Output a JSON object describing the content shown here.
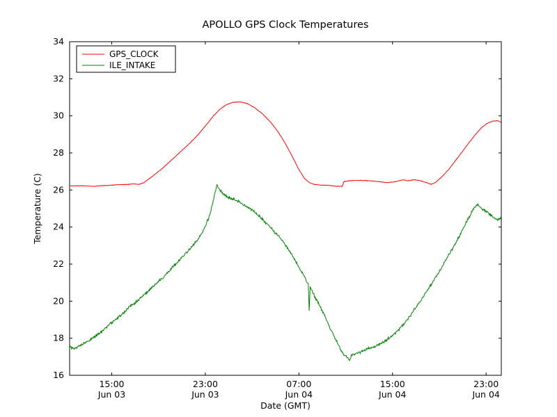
{
  "figure": {
    "background": "#ffffff"
  },
  "chart_data": {
    "type": "line",
    "title": "APOLLO GPS Clock Temperatures",
    "xlabel": "Date (GMT)",
    "ylabel": "Temperature (C)",
    "x_unit": "hours since Jun 03 00:00 GMT",
    "xlim": [
      11.4,
      48.3
    ],
    "ylim": [
      16,
      34
    ],
    "grid": false,
    "yticks": [
      16,
      18,
      20,
      22,
      24,
      26,
      28,
      30,
      32,
      34
    ],
    "xticks": [
      {
        "value": 15,
        "time": "15:00",
        "date": "Jun 03"
      },
      {
        "value": 23,
        "time": "23:00",
        "date": "Jun 03"
      },
      {
        "value": 31,
        "time": "07:00",
        "date": "Jun 04"
      },
      {
        "value": 39,
        "time": "15:00",
        "date": "Jun 04"
      },
      {
        "value": 47,
        "time": "23:00",
        "date": "Jun 04"
      }
    ],
    "legend": {
      "position": "upper left",
      "labels": [
        "GPS_CLOCK",
        "ILE_INTAKE"
      ]
    },
    "series": [
      {
        "name": "GPS_CLOCK",
        "color": "#ff0000",
        "noise": 0.02,
        "points": [
          [
            11.4,
            26.22
          ],
          [
            12.5,
            26.22
          ],
          [
            13.5,
            26.2
          ],
          [
            14.5,
            26.24
          ],
          [
            15.5,
            26.28
          ],
          [
            16.3,
            26.3
          ],
          [
            16.9,
            26.33
          ],
          [
            17.3,
            26.3
          ],
          [
            17.7,
            26.38
          ],
          [
            18.2,
            26.6
          ],
          [
            18.8,
            26.9
          ],
          [
            19.4,
            27.2
          ],
          [
            20.0,
            27.55
          ],
          [
            20.6,
            27.9
          ],
          [
            21.2,
            28.25
          ],
          [
            21.8,
            28.6
          ],
          [
            22.4,
            29.0
          ],
          [
            23.0,
            29.45
          ],
          [
            23.7,
            30.0
          ],
          [
            24.3,
            30.38
          ],
          [
            24.8,
            30.6
          ],
          [
            25.3,
            30.72
          ],
          [
            26.0,
            30.75
          ],
          [
            26.6,
            30.66
          ],
          [
            27.2,
            30.45
          ],
          [
            27.9,
            30.1
          ],
          [
            28.6,
            29.65
          ],
          [
            29.2,
            29.15
          ],
          [
            29.8,
            28.55
          ],
          [
            30.4,
            27.85
          ],
          [
            31.0,
            27.1
          ],
          [
            31.5,
            26.6
          ],
          [
            31.9,
            26.4
          ],
          [
            32.3,
            26.3
          ],
          [
            32.8,
            26.27
          ],
          [
            33.5,
            26.25
          ],
          [
            34.2,
            26.2
          ],
          [
            34.7,
            26.2
          ],
          [
            34.85,
            26.45
          ],
          [
            35.3,
            26.5
          ],
          [
            36.2,
            26.52
          ],
          [
            37.0,
            26.5
          ],
          [
            37.8,
            26.45
          ],
          [
            38.6,
            26.4
          ],
          [
            39.3,
            26.45
          ],
          [
            39.9,
            26.55
          ],
          [
            40.3,
            26.5
          ],
          [
            40.9,
            26.55
          ],
          [
            41.4,
            26.5
          ],
          [
            41.9,
            26.4
          ],
          [
            42.3,
            26.3
          ],
          [
            42.7,
            26.42
          ],
          [
            43.2,
            26.7
          ],
          [
            43.8,
            27.1
          ],
          [
            44.4,
            27.6
          ],
          [
            45.0,
            28.1
          ],
          [
            45.6,
            28.6
          ],
          [
            46.1,
            29.0
          ],
          [
            46.6,
            29.35
          ],
          [
            47.1,
            29.6
          ],
          [
            47.6,
            29.72
          ],
          [
            48.0,
            29.73
          ],
          [
            48.3,
            29.65
          ]
        ]
      },
      {
        "name": "ILE_INTAKE",
        "color": "#008000",
        "noise": 0.11,
        "points": [
          [
            11.4,
            17.5
          ],
          [
            11.8,
            17.45
          ],
          [
            12.3,
            17.6
          ],
          [
            13.0,
            17.85
          ],
          [
            13.6,
            18.1
          ],
          [
            14.2,
            18.4
          ],
          [
            14.8,
            18.75
          ],
          [
            15.4,
            19.05
          ],
          [
            16.0,
            19.35
          ],
          [
            16.4,
            19.65
          ],
          [
            17.0,
            19.9
          ],
          [
            17.6,
            20.25
          ],
          [
            18.2,
            20.6
          ],
          [
            18.8,
            20.95
          ],
          [
            19.4,
            21.3
          ],
          [
            20.0,
            21.7
          ],
          [
            20.6,
            22.1
          ],
          [
            21.2,
            22.5
          ],
          [
            21.8,
            22.9
          ],
          [
            22.4,
            23.35
          ],
          [
            22.9,
            23.9
          ],
          [
            23.3,
            24.5
          ],
          [
            23.6,
            25.2
          ],
          [
            23.85,
            25.9
          ],
          [
            24.0,
            26.28
          ],
          [
            24.2,
            26.05
          ],
          [
            24.5,
            25.8
          ],
          [
            24.9,
            25.6
          ],
          [
            25.4,
            25.5
          ],
          [
            25.9,
            25.35
          ],
          [
            26.4,
            25.15
          ],
          [
            26.9,
            24.95
          ],
          [
            27.4,
            24.7
          ],
          [
            27.9,
            24.4
          ],
          [
            28.4,
            24.1
          ],
          [
            28.9,
            23.75
          ],
          [
            29.4,
            23.4
          ],
          [
            29.9,
            23.0
          ],
          [
            30.4,
            22.5
          ],
          [
            30.9,
            21.95
          ],
          [
            31.4,
            21.4
          ],
          [
            31.8,
            20.9
          ],
          [
            31.88,
            19.5
          ],
          [
            31.96,
            20.75
          ],
          [
            32.4,
            20.2
          ],
          [
            32.9,
            19.6
          ],
          [
            33.4,
            18.9
          ],
          [
            33.9,
            18.25
          ],
          [
            34.4,
            17.6
          ],
          [
            34.8,
            17.15
          ],
          [
            35.2,
            16.9
          ],
          [
            35.35,
            16.8
          ],
          [
            35.5,
            17.05
          ],
          [
            36.0,
            17.2
          ],
          [
            36.5,
            17.35
          ],
          [
            37.0,
            17.45
          ],
          [
            37.5,
            17.55
          ],
          [
            38.0,
            17.7
          ],
          [
            38.5,
            17.9
          ],
          [
            39.0,
            18.15
          ],
          [
            39.5,
            18.45
          ],
          [
            40.0,
            18.8
          ],
          [
            40.5,
            19.2
          ],
          [
            41.0,
            19.65
          ],
          [
            41.5,
            20.1
          ],
          [
            42.0,
            20.6
          ],
          [
            42.5,
            21.1
          ],
          [
            43.0,
            21.6
          ],
          [
            43.5,
            22.15
          ],
          [
            44.0,
            22.7
          ],
          [
            44.5,
            23.25
          ],
          [
            45.0,
            23.85
          ],
          [
            45.4,
            24.35
          ],
          [
            45.8,
            24.85
          ],
          [
            46.1,
            25.12
          ],
          [
            46.3,
            25.2
          ],
          [
            46.6,
            25.0
          ],
          [
            47.0,
            24.85
          ],
          [
            47.4,
            24.65
          ],
          [
            47.8,
            24.45
          ],
          [
            48.05,
            24.38
          ],
          [
            48.3,
            24.58
          ]
        ]
      }
    ]
  }
}
